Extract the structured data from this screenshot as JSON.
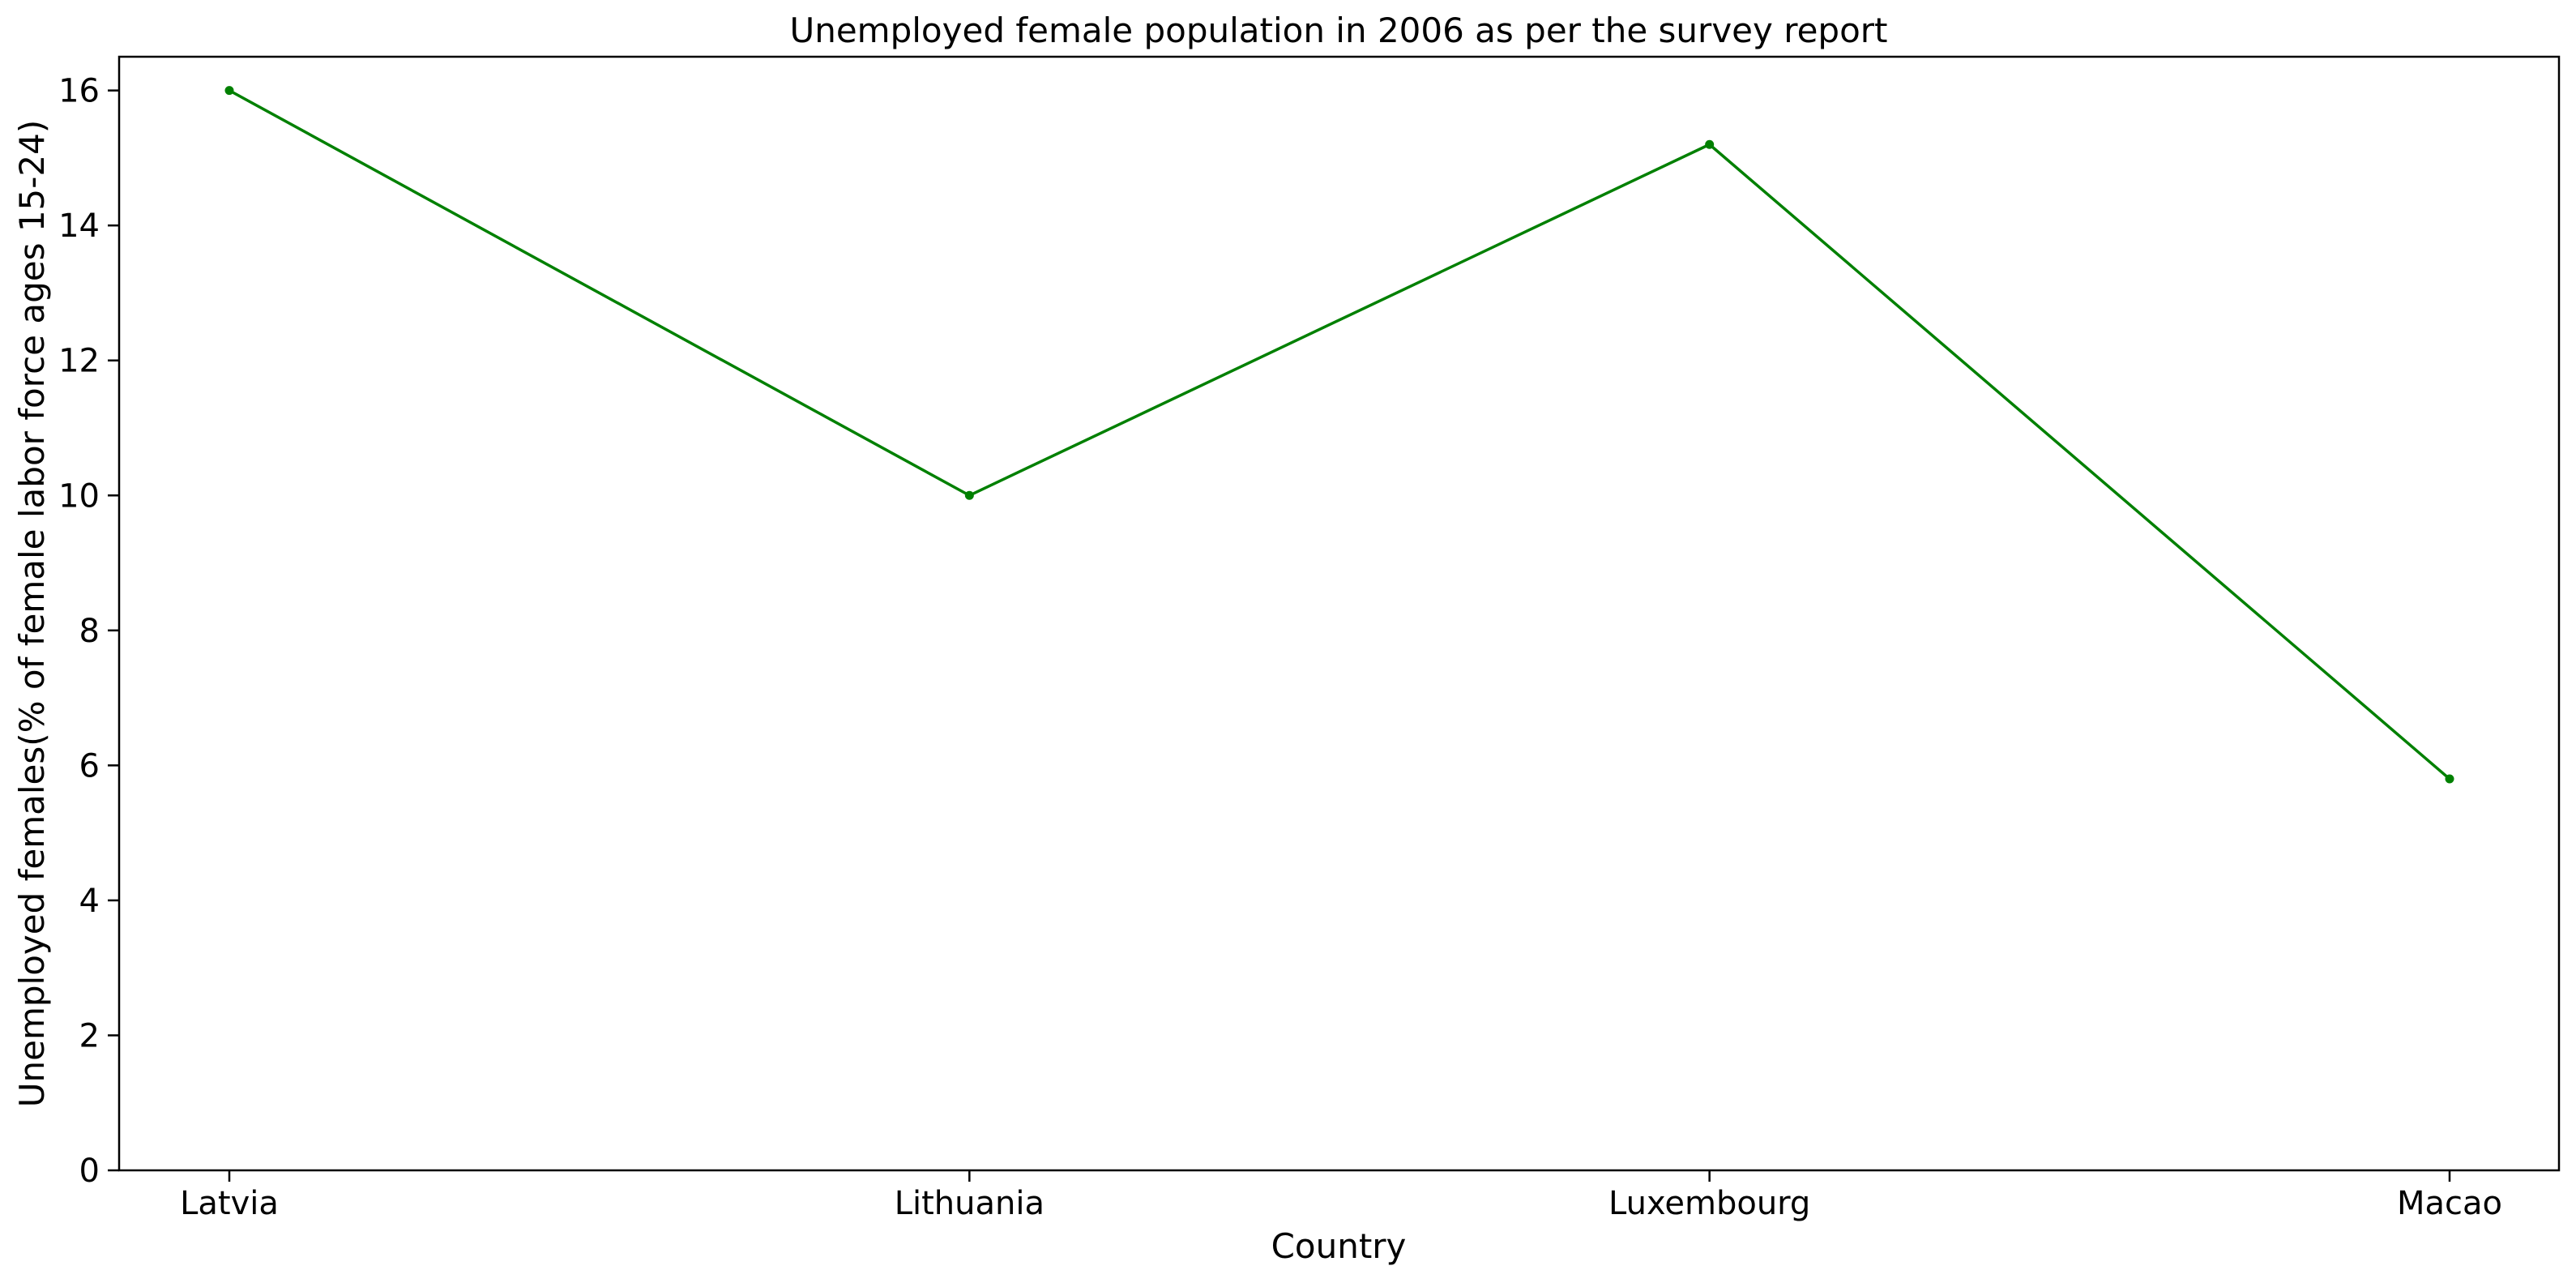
{
  "chart_data": {
    "type": "line",
    "title": "Unemployed female population in 2006 as per the survey report",
    "xlabel": "Country",
    "ylabel": "Unemployed females(% of female labor force ages 15-24)",
    "categories": [
      "Latvia",
      "Lithuania",
      "Luxembourg",
      "Macao"
    ],
    "series": [
      {
        "values": [
          16.0,
          10.0,
          15.2,
          5.8
        ],
        "color": "#008000"
      }
    ],
    "ylim": [
      0,
      16.5
    ],
    "yticks": [
      0,
      2,
      4,
      6,
      8,
      10,
      12,
      14,
      16
    ],
    "grid": false,
    "legend": "none",
    "marker": "circle"
  }
}
